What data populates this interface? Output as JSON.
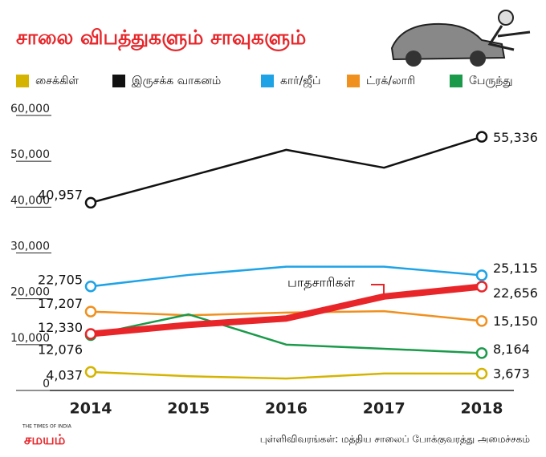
{
  "chart_data": {
    "type": "line",
    "title": "சாலை விபத்துகளும் சாவுகளும்",
    "categories": [
      "2014",
      "2015",
      "2016",
      "2017",
      "2018"
    ],
    "series": [
      {
        "name": "சைக்கிள்",
        "color": "#d4b400",
        "values": [
          4037,
          3100,
          2600,
          3700,
          3673
        ],
        "value_labels": [
          "4,037",
          null,
          null,
          null,
          "3,673"
        ]
      },
      {
        "name": "இருசக்க வாகனம்",
        "color": "#111111",
        "values": [
          40957,
          46700,
          52500,
          48600,
          55336
        ],
        "value_labels": [
          "40,957",
          null,
          null,
          null,
          "55,336"
        ]
      },
      {
        "name": "கார்/ஜீப்",
        "color": "#1ea3e6",
        "values": [
          22705,
          25200,
          27000,
          27000,
          25115
        ],
        "value_labels": [
          "22,705",
          null,
          null,
          null,
          "25,115"
        ]
      },
      {
        "name": "ட்ரக்/லாரி",
        "color": "#f0901e",
        "values": [
          17207,
          16400,
          17000,
          17300,
          15150
        ],
        "value_labels": [
          "17,207",
          null,
          null,
          null,
          "15,150"
        ]
      },
      {
        "name": "பேருந்து",
        "color": "#1a9a4a",
        "values": [
          12076,
          16600,
          10000,
          9100,
          8164
        ],
        "value_labels": [
          "12,076",
          null,
          null,
          null,
          "8,164"
        ]
      }
    ],
    "highlight": {
      "name": "பாதசாரிகள்",
      "color": "#e8262a",
      "values": [
        12330,
        14300,
        15700,
        20500,
        22656
      ],
      "value_labels": [
        "12,330",
        null,
        null,
        null,
        "22,656"
      ]
    },
    "ylim": [
      0,
      60000
    ],
    "yticks": [
      0,
      {
        "value": 10000,
        "label": "10,000"
      },
      {
        "value": 20000,
        "label": "20,000"
      },
      {
        "value": 30000,
        "label": "30,000"
      },
      {
        "value": 40000,
        "label": "40,000"
      },
      {
        "value": 50000,
        "label": "50,000"
      },
      {
        "value": 60000,
        "label": "60,000"
      }
    ],
    "source": "புள்ளிவிவரங்கள்: மத்திய சாலைப் போக்குவரத்து அமைச்சகம்",
    "brand": "சமயம்",
    "brand_top": "THE TIMES OF INDIA"
  }
}
